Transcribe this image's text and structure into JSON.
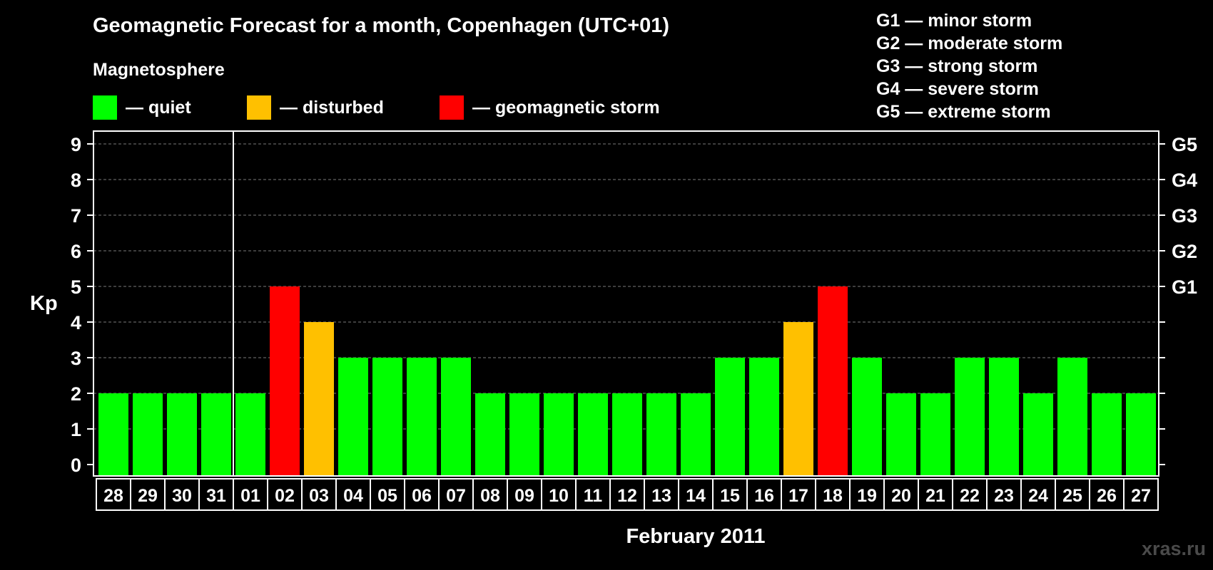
{
  "title": "Geomagnetic Forecast for a month, Copenhagen (UTC+01)",
  "section_label": "Magnetosphere",
  "legend": [
    {
      "key": "quiet",
      "label": "— quiet",
      "color": "#00ff00"
    },
    {
      "key": "disturbed",
      "label": "— disturbed",
      "color": "#ffc000"
    },
    {
      "key": "storm",
      "label": "— geomagnetic storm",
      "color": "#ff0000"
    }
  ],
  "g_scale": [
    "G1 — minor storm",
    "G2 — moderate storm",
    "G3 — strong storm",
    "G4 — severe storm",
    "G5 — extreme storm"
  ],
  "watermark": "xras.ru",
  "chart_data": {
    "type": "bar",
    "xlabel": "February 2011",
    "ylabel": "Kp",
    "ylim": [
      0,
      9
    ],
    "yticks": [
      0,
      1,
      2,
      3,
      4,
      5,
      6,
      7,
      8,
      9
    ],
    "right_axis_labels": [
      {
        "y": 5,
        "label": "G1"
      },
      {
        "y": 6,
        "label": "G2"
      },
      {
        "y": 7,
        "label": "G3"
      },
      {
        "y": 8,
        "label": "G4"
      },
      {
        "y": 9,
        "label": "G5"
      }
    ],
    "grid": "horizontal dashed",
    "categories": [
      "28",
      "29",
      "30",
      "31",
      "01",
      "02",
      "03",
      "04",
      "05",
      "06",
      "07",
      "08",
      "09",
      "10",
      "11",
      "12",
      "13",
      "14",
      "15",
      "16",
      "17",
      "18",
      "19",
      "20",
      "21",
      "22",
      "23",
      "24",
      "25",
      "26",
      "27"
    ],
    "values": [
      2,
      2,
      2,
      2,
      2,
      5,
      4,
      3,
      3,
      3,
      3,
      2,
      2,
      2,
      2,
      2,
      2,
      2,
      3,
      3,
      4,
      5,
      3,
      2,
      2,
      3,
      3,
      2,
      3,
      2,
      2
    ],
    "status": [
      "quiet",
      "quiet",
      "quiet",
      "quiet",
      "quiet",
      "storm",
      "disturbed",
      "quiet",
      "quiet",
      "quiet",
      "quiet",
      "quiet",
      "quiet",
      "quiet",
      "quiet",
      "quiet",
      "quiet",
      "quiet",
      "quiet",
      "quiet",
      "disturbed",
      "storm",
      "quiet",
      "quiet",
      "quiet",
      "quiet",
      "quiet",
      "quiet",
      "quiet",
      "quiet",
      "quiet"
    ],
    "month_divider_after": "31"
  }
}
